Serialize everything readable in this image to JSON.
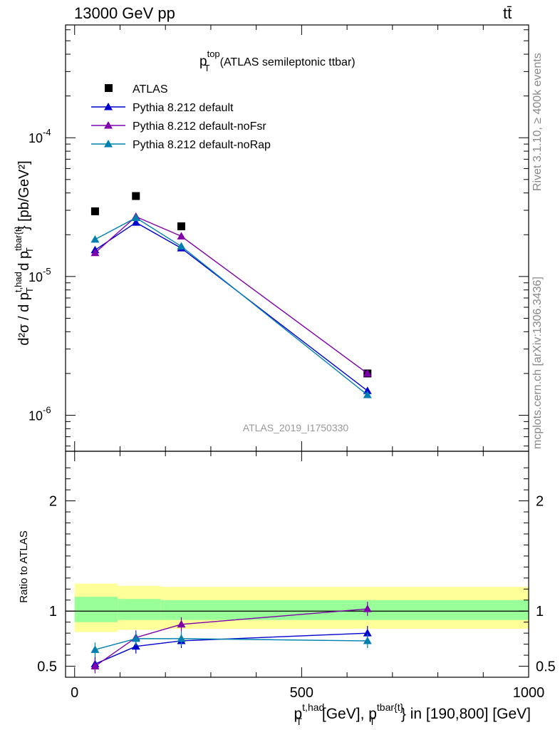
{
  "header": {
    "left": "13000 GeV pp",
    "right": "tt̄"
  },
  "side_labels": {
    "rivet": "Rivet 3.1.10, ≥ 400k events",
    "mcplots": "mcplots.cern.ch [arXiv:1306.3436]"
  },
  "analysis_id": "ATLAS_2019_I1750330",
  "chart_data": [
    {
      "type": "scatter",
      "title_base": "p",
      "title_sup": "top",
      "title_sub": "T",
      "title_suffix": "(ATLAS semileptonic ttbar)",
      "ylabel": "d²σ / d p_T^{t,had} d p_T^{tbar{t}} [pb/GeV²]",
      "yscale": "log",
      "ylim": [
        5.5e-07,
        0.00065
      ],
      "xlim": [
        -20,
        1000
      ],
      "y_tick_labels": [
        "10^{-6}",
        "10^{-5}",
        "10^{-4}"
      ],
      "y_tick_label_parts": [
        {
          "base": "10",
          "exp": "-6",
          "value": 1e-06
        },
        {
          "base": "10",
          "exp": "-5",
          "value": 1e-05
        },
        {
          "base": "10",
          "exp": "-4",
          "value": 0.0001
        }
      ],
      "x": [
        45,
        135,
        235,
        645
      ],
      "bin_edges": [
        0,
        95,
        190,
        290,
        1000
      ],
      "legend": [
        "ATLAS",
        "Pythia 8.212 default",
        "Pythia 8.212 default-noFsr",
        "Pythia 8.212 default-noRap"
      ],
      "series": [
        {
          "name": "ATLAS",
          "color": "#000000",
          "marker": "square",
          "values": [
            2.95e-05,
            3.8e-05,
            2.3e-05,
            2e-06
          ]
        },
        {
          "name": "Pythia 8.212 default",
          "color": "#0000cc",
          "marker": "triangle",
          "values": [
            1.55e-05,
            2.45e-05,
            1.6e-05,
            1.5e-06
          ]
        },
        {
          "name": "Pythia 8.212 default-noFsr",
          "color": "#7f00aa",
          "marker": "triangle",
          "values": [
            1.48e-05,
            2.7e-05,
            1.95e-05,
            2e-06
          ]
        },
        {
          "name": "Pythia 8.212 default-noRap",
          "color": "#0080b0",
          "marker": "triangle",
          "values": [
            1.85e-05,
            2.65e-05,
            1.65e-05,
            1.4e-06
          ]
        }
      ]
    },
    {
      "type": "scatter",
      "ylabel": "Ratio to ATLAS",
      "xlabel": "p_T^{t,had} [GeV], p_T^{tbar{t}} in [190,800] [GeV]",
      "xlabel_parts": {
        "p": "p",
        "sup1": "t,had",
        "sub": "T",
        "mid": "[GeV], p",
        "sup2": "tbar{t}",
        "end": "} in [190,800] [GeV]"
      },
      "ylim": [
        0.4,
        2.45
      ],
      "xlim": [
        -20,
        1000
      ],
      "x_tick_labels": [
        "0",
        "500",
        "1000"
      ],
      "y_tick_labels": [
        "0.5",
        "1",
        "2"
      ],
      "bands": {
        "bin_edges": [
          0,
          95,
          190,
          290,
          1000
        ],
        "yellow": [
          [
            0.81,
            1.25
          ],
          [
            0.83,
            1.23
          ],
          [
            0.84,
            1.22
          ],
          [
            0.84,
            1.22
          ]
        ],
        "green": [
          [
            0.9,
            1.13
          ],
          [
            0.92,
            1.11
          ],
          [
            0.92,
            1.1
          ],
          [
            0.92,
            1.1
          ]
        ],
        "yellow_color": "#ffff99",
        "green_color": "#99ff99"
      },
      "series": [
        {
          "name": "Pythia 8.212 default",
          "color": "#0000cc",
          "values": [
            0.52,
            0.68,
            0.73,
            0.8
          ]
        },
        {
          "name": "Pythia 8.212 default-noFsr",
          "color": "#7f00aa",
          "values": [
            0.5,
            0.76,
            0.88,
            1.02
          ]
        },
        {
          "name": "Pythia 8.212 default-noRap",
          "color": "#0080b0",
          "values": [
            0.65,
            0.75,
            0.75,
            0.73
          ]
        }
      ]
    }
  ]
}
